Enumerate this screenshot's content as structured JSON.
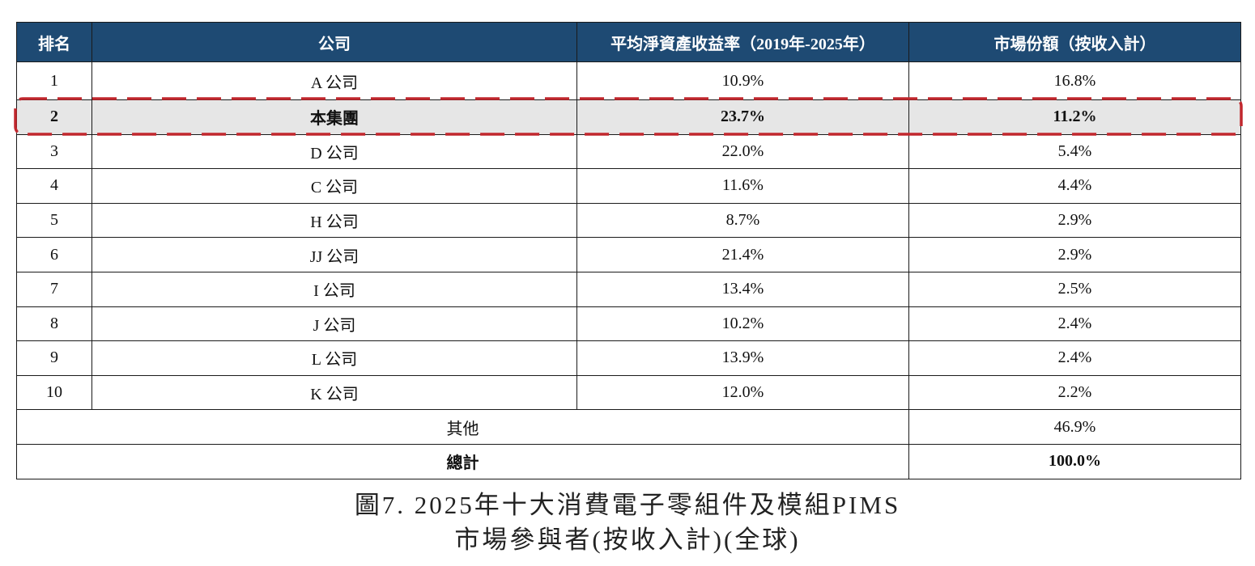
{
  "colors": {
    "header_background": "#1e4a73",
    "highlight_outline": "#c1272d",
    "highlight_row_background": "#e6e6e6"
  },
  "table": {
    "headers": {
      "rank": "排名",
      "company": "公司",
      "roe": "平均淨資產收益率（2019年-2025年）",
      "market_share": "市場份額（按收入計）"
    },
    "rows": [
      {
        "rank": "1",
        "company": "A 公司",
        "roe": "10.9%",
        "market_share": "16.8%"
      },
      {
        "rank": "2",
        "company": "本集團",
        "roe": "23.7%",
        "market_share": "11.2%",
        "highlighted": true
      },
      {
        "rank": "3",
        "company": "D 公司",
        "roe": "22.0%",
        "market_share": "5.4%"
      },
      {
        "rank": "4",
        "company": "C 公司",
        "roe": "11.6%",
        "market_share": "4.4%"
      },
      {
        "rank": "5",
        "company": "H 公司",
        "roe": "8.7%",
        "market_share": "2.9%"
      },
      {
        "rank": "6",
        "company": "JJ 公司",
        "roe": "21.4%",
        "market_share": "2.9%"
      },
      {
        "rank": "7",
        "company": "I 公司",
        "roe": "13.4%",
        "market_share": "2.5%"
      },
      {
        "rank": "8",
        "company": "J 公司",
        "roe": "10.2%",
        "market_share": "2.4%"
      },
      {
        "rank": "9",
        "company": "L 公司",
        "roe": "13.9%",
        "market_share": "2.4%"
      },
      {
        "rank": "10",
        "company": "K 公司",
        "roe": "12.0%",
        "market_share": "2.2%"
      }
    ],
    "others": {
      "label": "其他",
      "market_share": "46.9%"
    },
    "total": {
      "label": "總計",
      "market_share": "100.0%"
    }
  },
  "caption": {
    "line1": "圖7. 2025年十大消費電子零組件及模組PIMS",
    "line2": "市場參與者(按收入計)(全球)"
  }
}
